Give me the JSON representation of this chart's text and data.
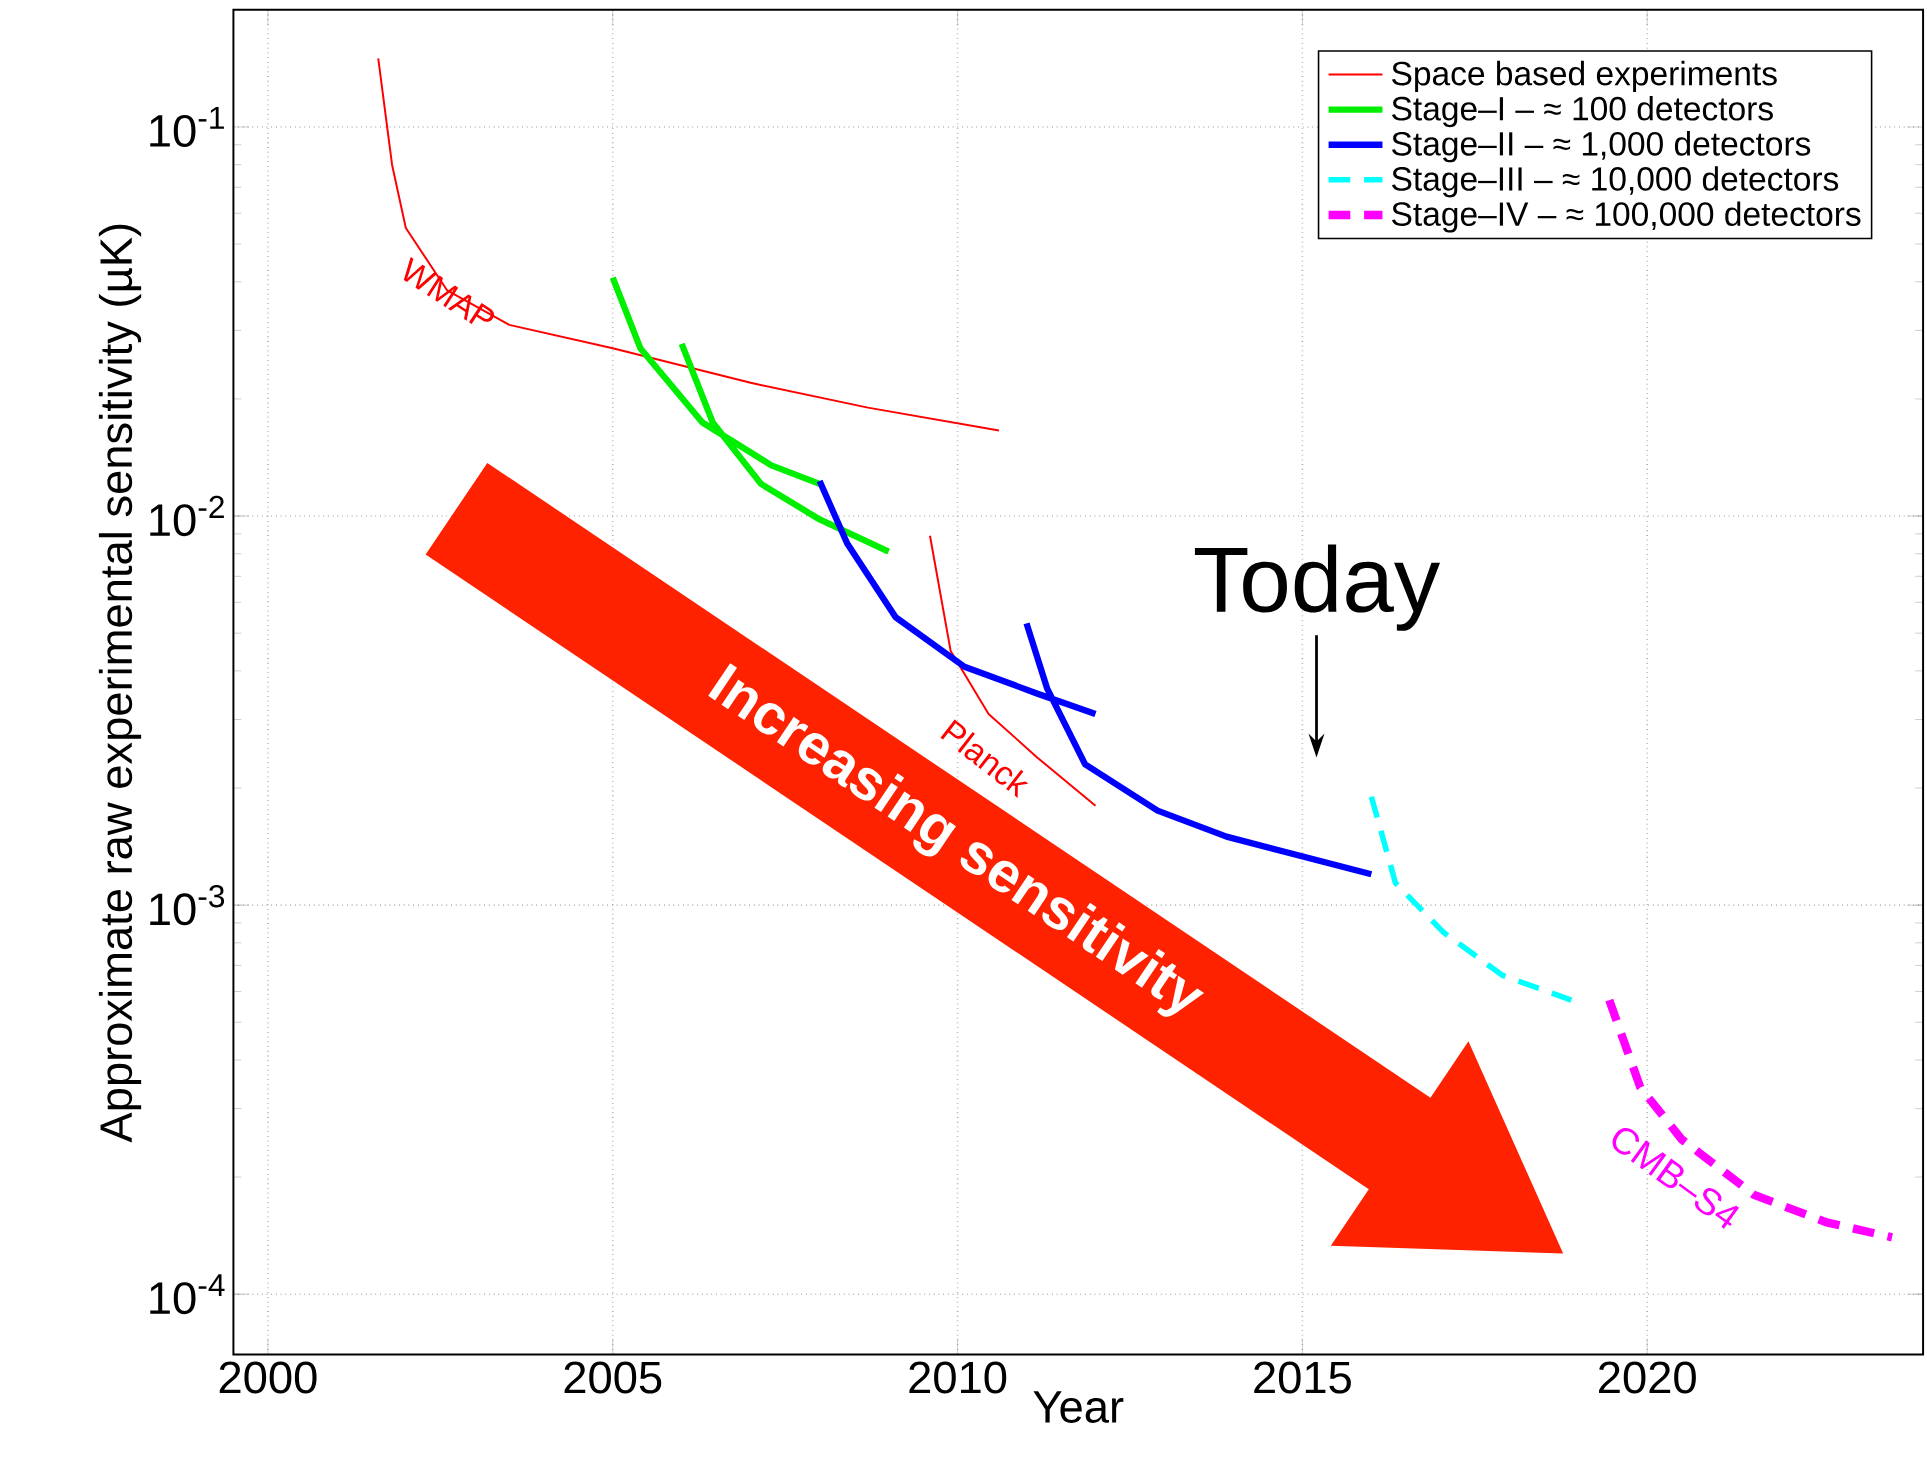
{
  "chart_data": {
    "type": "line",
    "xlabel": "Year",
    "ylabel": "Approximate raw experimental sensitivity (µK)",
    "log": "y",
    "grid": true,
    "legend": "top right",
    "xlim": [
      1999.5,
      2024
    ],
    "ylim": [
      7e-05,
      0.2
    ],
    "xticks": [
      2000,
      2005,
      2010,
      2015,
      2020
    ],
    "yticks": [
      {
        "value": 0.0001,
        "label": "10$^{-4}$"
      },
      {
        "value": 0.001,
        "label": "10$^{-3}$"
      },
      {
        "value": 0.01,
        "label": "10$^{-2}$"
      },
      {
        "value": 0.1,
        "label": "10$^{-1}$"
      }
    ],
    "series": [
      {
        "name": "Space based experiments",
        "color": "#ff0000",
        "x": [
          2001.6,
          2001.8,
          2002.0,
          2002.6,
          2003.5,
          2005,
          2007,
          2008.7,
          2010.6,
          null,
          2009.6,
          2009.9,
          2010.45,
          2011.15,
          2012.0
        ],
        "values": [
          0.15,
          0.08,
          0.055,
          0.038,
          0.031,
          0.027,
          0.022,
          0.019,
          0.0166,
          null,
          0.0089,
          0.0045,
          0.0031,
          0.0024,
          0.0018
        ]
      },
      {
        "name": "Stage–I – ≈ 100 detectors",
        "color": "#00ee00",
        "x": [
          2005.0,
          2005.4,
          2006.3,
          2007.3,
          2008.0,
          null,
          2006.0,
          2006.45,
          2007.15,
          2008.0,
          2009.0
        ],
        "values": [
          0.041,
          0.027,
          0.0174,
          0.0135,
          0.0121,
          null,
          0.0277,
          0.0174,
          0.0121,
          0.0098,
          0.0081
        ]
      },
      {
        "name": "Stage–II – ≈ 1,000 detectors",
        "color": "#0000ff",
        "x": [
          2008.0,
          2008.4,
          2009.1,
          2010.1,
          2011.15,
          2012.0,
          null,
          2011.0,
          2011.3,
          2011.85,
          2012.9,
          2013.9,
          2016.0
        ],
        "values": [
          0.0123,
          0.0085,
          0.0055,
          0.0041,
          0.0035,
          0.0031,
          null,
          0.0053,
          0.0036,
          0.0023,
          0.00175,
          0.0015,
          0.0012
        ]
      },
      {
        "name": "Stage–III – ≈ 10,000 detectors",
        "color": "#00ffff",
        "line_style": "dashed",
        "x": [
          2016.0,
          2016.35,
          2017.05,
          2017.9,
          2018.9
        ],
        "values": [
          0.0019,
          0.00114,
          0.00085,
          0.00066,
          0.00057
        ]
      },
      {
        "name": "Stage–IV – ≈ 100,000 detectors",
        "color": "#ff00ff",
        "line_style": "dashed",
        "x": [
          2019.45,
          2019.9,
          2020.5,
          2021.55,
          2022.6,
          2023.55
        ],
        "values": [
          0.00057,
          0.00034,
          0.00025,
          0.00018,
          0.000153,
          0.00014
        ]
      }
    ],
    "annotations": [
      "WMAP",
      "Planck",
      "CMB–S4",
      "Today",
      "Increasing sensitivity"
    ]
  }
}
